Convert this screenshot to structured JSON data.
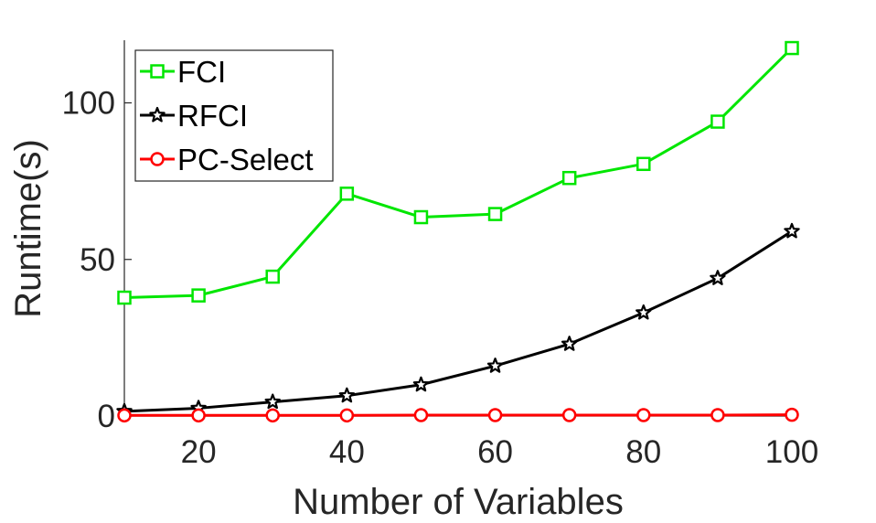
{
  "chart_data": {
    "type": "line",
    "xlabel": "Number of Variables",
    "ylabel": "Runtime(s)",
    "xlim": [
      10,
      100
    ],
    "ylim": [
      0,
      120
    ],
    "xticks": [
      20,
      40,
      60,
      80,
      100
    ],
    "yticks": [
      0,
      50,
      100
    ],
    "grid": false,
    "legend_position": "top-left",
    "x": [
      10,
      20,
      30,
      40,
      50,
      60,
      70,
      80,
      90,
      100
    ],
    "series": [
      {
        "name": "FCI",
        "color": "#00e600",
        "marker": "square",
        "values": [
          37.8,
          38.5,
          44.5,
          71.0,
          63.5,
          64.5,
          76.0,
          80.5,
          94.0,
          117.5
        ]
      },
      {
        "name": "RFCI",
        "color": "#000000",
        "marker": "star",
        "values": [
          1.5,
          2.5,
          4.5,
          6.5,
          10.0,
          16.0,
          23.0,
          33.0,
          44.0,
          59.0
        ]
      },
      {
        "name": "PC-Select",
        "color": "#ff0000",
        "marker": "circle",
        "values": [
          0.2,
          0.2,
          0.2,
          0.2,
          0.3,
          0.3,
          0.3,
          0.3,
          0.3,
          0.4
        ]
      }
    ]
  }
}
